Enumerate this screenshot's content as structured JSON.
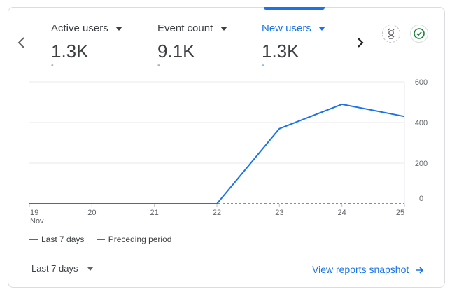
{
  "metrics": [
    {
      "label": "Active users",
      "value": "1.3K",
      "sub": "-",
      "active": false
    },
    {
      "label": "Event count",
      "value": "9.1K",
      "sub": "-",
      "active": false
    },
    {
      "label": "New users",
      "value": "1.3K",
      "sub": "-",
      "active": true
    }
  ],
  "icons": {
    "prev": "chevron-left-icon",
    "next": "chevron-right-icon",
    "insights": "insights-badge-icon",
    "check": "check-circle-icon"
  },
  "colors": {
    "accent": "#1a73e8",
    "success": "#188038",
    "grid": "#e8eaed",
    "text": "#3c4043"
  },
  "chart_data": {
    "type": "line",
    "x": [
      "19",
      "20",
      "21",
      "22",
      "23",
      "24",
      "25"
    ],
    "x_sublabel": "Nov",
    "series": [
      {
        "name": "Last 7 days",
        "style": "solid",
        "values": [
          0,
          0,
          0,
          0,
          370,
          490,
          430
        ]
      },
      {
        "name": "Preceding period",
        "style": "dashed",
        "values": [
          0,
          0,
          0,
          0,
          0,
          0,
          0
        ]
      }
    ],
    "yticks": [
      "600",
      "400",
      "200",
      "0"
    ],
    "ylim": [
      0,
      600
    ],
    "grid": true,
    "legend_position": "bottom-left",
    "y_axis_side": "right"
  },
  "legend": {
    "last7": "Last 7 days",
    "preceding": "Preceding period"
  },
  "footer": {
    "period": "Last 7 days",
    "link": "View reports snapshot"
  }
}
